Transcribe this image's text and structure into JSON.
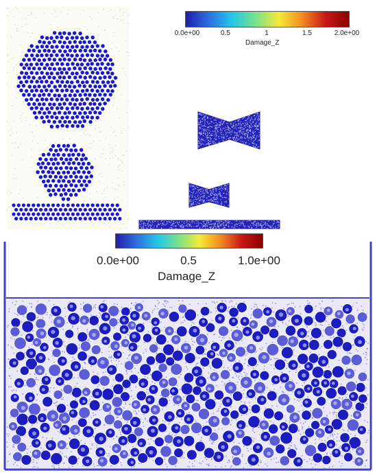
{
  "figure": {
    "colorbar_small": {
      "title": "Damage_Z",
      "ticks": [
        "0.0e+00",
        "0.5",
        "1",
        "1.5",
        "2.0e+00"
      ],
      "range": [
        0,
        2
      ]
    },
    "colorbar_large": {
      "title": "Damage_Z",
      "ticks": [
        "0.0e+00",
        "0.5",
        "1.0e+00"
      ],
      "range": [
        0,
        1
      ]
    },
    "particle_color": "#1a1acc",
    "colormap": [
      "#1f1fa8",
      "#2e6fe0",
      "#23c7e8",
      "#7be08a",
      "#f5e93a",
      "#f28b20",
      "#c81818",
      "#8b0000"
    ]
  }
}
